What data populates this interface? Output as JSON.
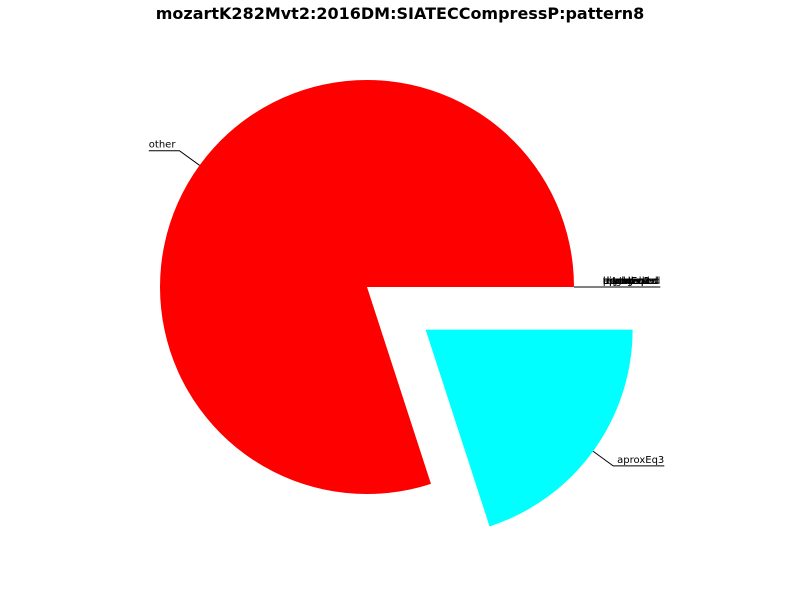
{
  "chart_data": {
    "type": "pie",
    "title": "mozartK282Mvt2:2016DM:SIATECCompressP:pattern8",
    "slices": [
      {
        "label": "other",
        "value": 0.8,
        "color": "#ff0000",
        "exploded": false
      },
      {
        "label": "aproxEq3",
        "value": 0.2,
        "color": "#00ffff",
        "exploded": true
      },
      {
        "label": "aproxEq2",
        "value": 0.0,
        "color": "#ff0000",
        "exploded": false
      },
      {
        "label": "aproxEq1",
        "value": 0.0,
        "color": "#ff0000",
        "exploded": false
      },
      {
        "label": "equal",
        "value": 0.0,
        "color": "#ff0000",
        "exploded": false
      },
      {
        "label": "retrograde",
        "value": 0.0,
        "color": "#ff0000",
        "exploded": false
      },
      {
        "label": "inverted",
        "value": 0.0,
        "color": "#ff0000",
        "exploded": false
      },
      {
        "label": "rhythm",
        "value": 0.0,
        "color": "#ff0000",
        "exploded": false
      },
      {
        "label": "pitch",
        "value": 0.0,
        "color": "#ff0000",
        "exploded": false
      },
      {
        "label": "augmented",
        "value": 0.0,
        "color": "#ff0000",
        "exploded": false
      },
      {
        "label": "diminished",
        "value": 0.0,
        "color": "#ff0000",
        "exploded": false
      },
      {
        "label": "transposed",
        "value": 0.0,
        "color": "#ff0000",
        "exploded": false
      }
    ]
  }
}
